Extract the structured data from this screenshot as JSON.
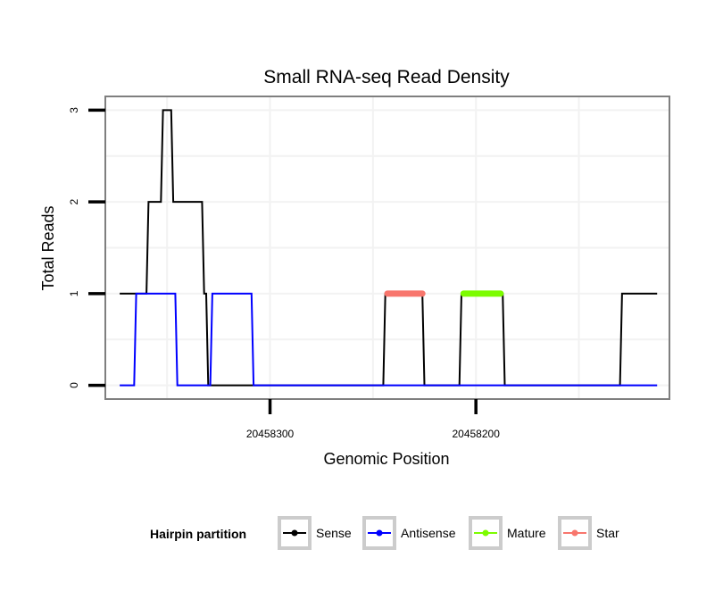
{
  "chart_data": {
    "type": "line",
    "title": "Small RNA-seq Read Density",
    "xlabel": "Genomic Position",
    "ylabel": "Total Reads",
    "x_reversed": true,
    "xlim": [
      20458380,
      20458106
    ],
    "ylim": [
      -0.15,
      3.15
    ],
    "x_ticks": [
      20458300,
      20458200
    ],
    "x_tick_labels": [
      "20458300",
      "20458200"
    ],
    "y_ticks": [
      0,
      1,
      2,
      3
    ],
    "y_tick_labels": [
      "0",
      "1",
      "2",
      "3"
    ],
    "grid": true,
    "legend": {
      "title": "Hairpin partition",
      "position": "bottom",
      "entries": [
        "Sense",
        "Antisense",
        "Mature",
        "Star"
      ]
    },
    "series": [
      {
        "name": "Sense",
        "color": "#000000",
        "width": 2,
        "points": [
          [
            20458373,
            1
          ],
          [
            20458360,
            1
          ],
          [
            20458359,
            2
          ],
          [
            20458353,
            2
          ],
          [
            20458352,
            3
          ],
          [
            20458348,
            3
          ],
          [
            20458347,
            2
          ],
          [
            20458333,
            2
          ],
          [
            20458332,
            1
          ],
          [
            20458331,
            1
          ],
          [
            20458330,
            0
          ],
          [
            20458245,
            0
          ],
          [
            20458244,
            1
          ],
          [
            20458226,
            1
          ],
          [
            20458225,
            0
          ],
          [
            20458208,
            0
          ],
          [
            20458207,
            1
          ],
          [
            20458187,
            1
          ],
          [
            20458186,
            0
          ],
          [
            20458130,
            0
          ],
          [
            20458129,
            1
          ],
          [
            20458112,
            1
          ]
        ]
      },
      {
        "name": "Antisense",
        "color": "#0000ff",
        "width": 2,
        "points": [
          [
            20458373,
            0
          ],
          [
            20458366,
            0
          ],
          [
            20458365,
            1
          ],
          [
            20458346,
            1
          ],
          [
            20458345,
            0
          ],
          [
            20458329,
            0
          ],
          [
            20458328,
            1
          ],
          [
            20458309,
            1
          ],
          [
            20458308,
            0
          ],
          [
            20458112,
            0
          ]
        ]
      },
      {
        "name": "Star",
        "color": "#f8766d",
        "width": 7,
        "points": [
          [
            20458243,
            1
          ],
          [
            20458226,
            1
          ]
        ]
      },
      {
        "name": "Mature",
        "color": "#7cfc00",
        "width": 7,
        "points": [
          [
            20458206,
            1
          ],
          [
            20458188,
            1
          ]
        ]
      }
    ]
  }
}
